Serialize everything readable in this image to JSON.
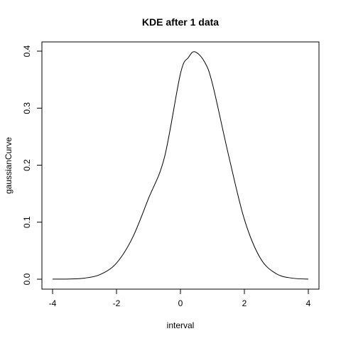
{
  "chart_data": {
    "type": "line",
    "title": "KDE after 1 data",
    "xlabel": "interval",
    "ylabel": "gaussianCurve",
    "xlim": [
      -4,
      4
    ],
    "ylim": [
      0,
      0.4
    ],
    "x_ticks": [
      -4,
      -2,
      0,
      2,
      4
    ],
    "y_ticks": [
      0.0,
      0.1,
      0.2,
      0.3,
      0.4
    ],
    "x_tick_labels": [
      "-4",
      "-2",
      "0",
      "2",
      "4"
    ],
    "y_tick_labels": [
      "0.0",
      "0.1",
      "0.2",
      "0.3",
      "0.4"
    ],
    "grid": false,
    "series": [
      {
        "color": "#000000",
        "x": [
          -4.0,
          -3.5,
          -3.0,
          -2.5,
          -2.0,
          -1.5,
          -1.0,
          -0.5,
          0.0,
          0.25,
          0.45,
          0.75,
          1.0,
          1.5,
          2.0,
          2.5,
          3.0,
          3.5,
          4.0
        ],
        "y": [
          0.0001,
          0.0003,
          0.0019,
          0.0085,
          0.0283,
          0.0727,
          0.1415,
          0.2138,
          0.3605,
          0.3889,
          0.3989,
          0.3815,
          0.3429,
          0.2186,
          0.1049,
          0.0367,
          0.0095,
          0.0018,
          0.0002
        ]
      }
    ]
  }
}
